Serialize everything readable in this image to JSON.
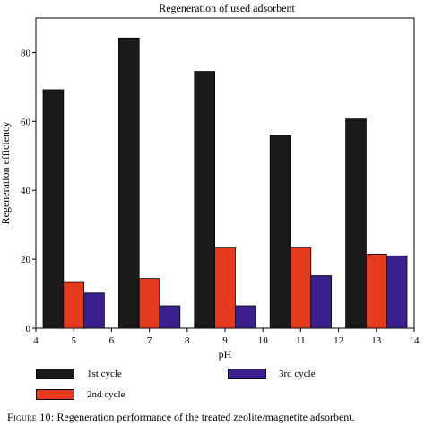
{
  "chart_data": {
    "type": "bar",
    "title": "Regeneration of used adsorbent",
    "xlabel": "pH",
    "ylabel": "Regeneration efficiency",
    "categories": [
      5,
      7,
      9,
      11,
      13
    ],
    "xlim": [
      4,
      14
    ],
    "xticks": [
      4,
      5,
      6,
      7,
      8,
      9,
      10,
      11,
      12,
      13,
      14
    ],
    "ylim": [
      0,
      90
    ],
    "yticks": [
      0,
      20,
      40,
      60,
      80
    ],
    "grid": false,
    "legend_position": "bottom",
    "series": [
      {
        "name": "1st cycle",
        "color": "#1a1a1a",
        "values": [
          69.2,
          84.2,
          74.5,
          56.0,
          60.7
        ]
      },
      {
        "name": "2nd cycle",
        "color": "#e63a1e",
        "values": [
          13.5,
          14.4,
          23.5,
          23.5,
          21.5
        ]
      },
      {
        "name": "3rd cycle",
        "color": "#3b1f8c",
        "values": [
          10.2,
          6.5,
          6.5,
          15.2,
          21.0
        ]
      }
    ]
  },
  "caption": {
    "label": "Figure 10:",
    "text": "Regeneration performance of the treated zeolite/magnetite adsorbent."
  }
}
